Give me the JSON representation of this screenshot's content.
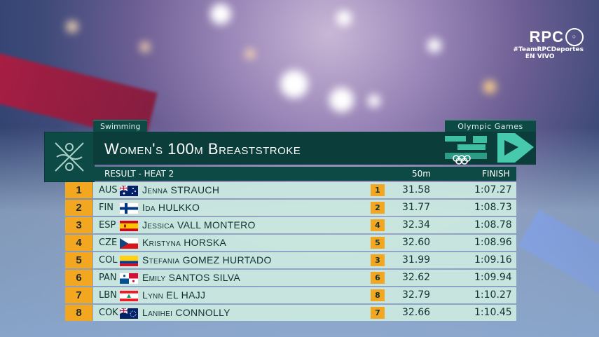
{
  "broadcaster": {
    "logo": "RPC",
    "hashtag": "#TeamRPCDeportes",
    "live": "EN VIVO"
  },
  "header": {
    "sport": "Swimming",
    "event_title": "Women's 100m Breaststroke",
    "games_label": "Olympic Games",
    "phase": "RESULT - HEAT 2",
    "col_split": "50m",
    "col_finish": "FINISH",
    "logo_icon": "pictogram-swimming-icon"
  },
  "colors": {
    "panel": "#0b3e3a",
    "accent": "#f3a620",
    "row": "#cbe9e0"
  },
  "results": [
    {
      "rank": "1",
      "country": "AUS",
      "flag_icon": "flag-australia-icon",
      "name": "Jenna STRAUCH",
      "lane": "1",
      "split": "31.58",
      "finish": "1:07.27"
    },
    {
      "rank": "2",
      "country": "FIN",
      "flag_icon": "flag-finland-icon",
      "name": "Ida HULKKO",
      "lane": "2",
      "split": "31.77",
      "finish": "1:08.73"
    },
    {
      "rank": "3",
      "country": "ESP",
      "flag_icon": "flag-spain-icon",
      "name": "Jessica VALL MONTERO",
      "lane": "4",
      "split": "32.34",
      "finish": "1:08.78"
    },
    {
      "rank": "4",
      "country": "CZE",
      "flag_icon": "flag-czechia-icon",
      "name": "Kristyna HORSKA",
      "lane": "5",
      "split": "32.60",
      "finish": "1:08.96"
    },
    {
      "rank": "5",
      "country": "COL",
      "flag_icon": "flag-colombia-icon",
      "name": "Stefania GOMEZ HURTADO",
      "lane": "3",
      "split": "31.99",
      "finish": "1:09.16"
    },
    {
      "rank": "6",
      "country": "PAN",
      "flag_icon": "flag-panama-icon",
      "name": "Emily SANTOS SILVA",
      "lane": "6",
      "split": "32.62",
      "finish": "1:09.94"
    },
    {
      "rank": "7",
      "country": "LBN",
      "flag_icon": "flag-lebanon-icon",
      "name": "Lynn EL HAJJ",
      "lane": "8",
      "split": "32.79",
      "finish": "1:10.27"
    },
    {
      "rank": "8",
      "country": "COK",
      "flag_icon": "flag-cook-islands-icon",
      "name": "Lanihei CONNOLLY",
      "lane": "7",
      "split": "32.66",
      "finish": "1:10.45"
    }
  ]
}
